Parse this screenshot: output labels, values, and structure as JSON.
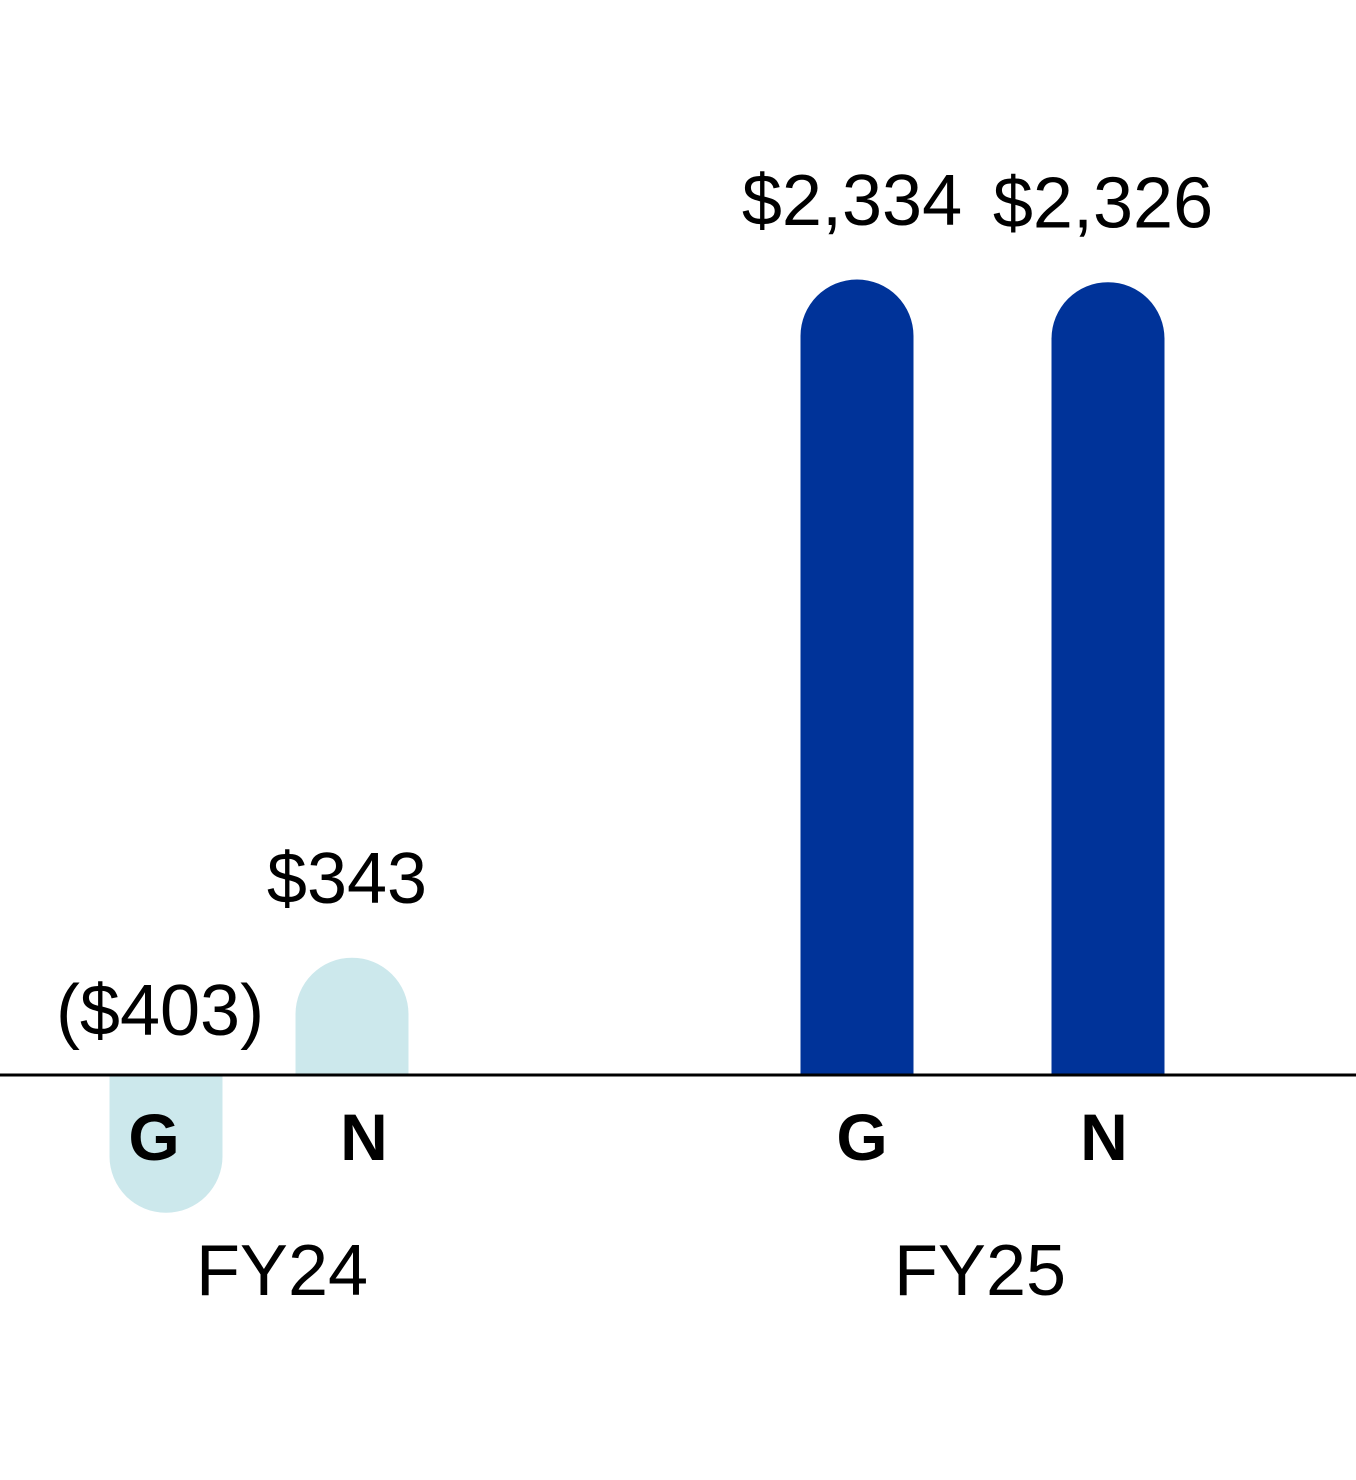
{
  "chart_data": {
    "type": "bar",
    "groups": [
      {
        "name": "FY24",
        "bars": [
          {
            "category": "G",
            "value": -403,
            "label": "($403)",
            "color": "#cce8ec"
          },
          {
            "category": "N",
            "value": 343,
            "label": "$343",
            "color": "#cce8ec"
          }
        ]
      },
      {
        "name": "FY25",
        "bars": [
          {
            "category": "G",
            "value": 2334,
            "label": "$2,334",
            "color": "#003399"
          },
          {
            "category": "N",
            "value": 2326,
            "label": "$2,326",
            "color": "#003399"
          }
        ]
      }
    ],
    "title": "",
    "xlabel": "",
    "ylabel": "",
    "legend": "none",
    "grid": false
  }
}
